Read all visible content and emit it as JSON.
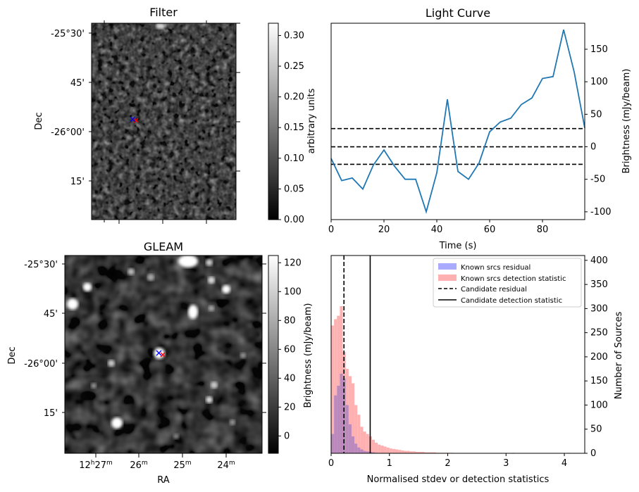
{
  "colors": {
    "series": "#1f77b4",
    "known_residual": "#aaaaff",
    "known_detection": "#ffb0b0",
    "candidate_blue": "#0000ff",
    "candidate_red": "#ff0000"
  },
  "panels": {
    "filter": {
      "title": "Filter",
      "ylabel": "Dec",
      "dec_ticks": [
        "-25°30'",
        "45'",
        "-26°00'",
        "15'"
      ],
      "colorbar": {
        "label": "arbitrary units",
        "ticks": [
          "0.00",
          "0.05",
          "0.10",
          "0.15",
          "0.20",
          "0.25",
          "0.30"
        ],
        "range": [
          0,
          0.32
        ]
      }
    },
    "gleam": {
      "title": "GLEAM",
      "xlabel": "RA",
      "ylabel": "Dec",
      "dec_ticks": [
        "-25°30'",
        "45'",
        "-26°00'",
        "15'"
      ],
      "ra_ticks": [
        {
          "h": "12",
          "m": "27",
          "main": true
        },
        {
          "m": "26"
        },
        {
          "m": "25"
        },
        {
          "m": "24"
        }
      ],
      "colorbar": {
        "label": "Brightness (mJy/beam)",
        "ticks": [
          "0",
          "20",
          "40",
          "60",
          "80",
          "100",
          "120"
        ],
        "range": [
          -12,
          125
        ]
      }
    }
  },
  "chart_data": [
    {
      "type": "line",
      "title": "Light Curve",
      "xlabel": "Time (s)",
      "ylabel": "Brightness (mJy/beam)",
      "xlim": [
        0,
        96
      ],
      "ylim": [
        -112,
        190
      ],
      "xticks": [
        0,
        20,
        40,
        60,
        80
      ],
      "yticks": [
        -100,
        -50,
        0,
        50,
        100,
        150
      ],
      "y_axis_side": "right",
      "x": [
        0,
        4,
        8,
        12,
        16,
        20,
        24,
        28,
        32,
        36,
        40,
        44,
        48,
        52,
        56,
        60,
        64,
        68,
        72,
        76,
        80,
        84,
        88,
        92,
        96
      ],
      "series": [
        {
          "values": [
            -18,
            -52,
            -48,
            -65,
            -28,
            -5,
            -30,
            -50,
            -50,
            -100,
            -40,
            73,
            -38,
            -50,
            -25,
            23,
            38,
            44,
            65,
            75,
            105,
            108,
            180,
            115,
            29
          ]
        }
      ],
      "hlines": [
        28,
        0,
        -27
      ]
    },
    {
      "type": "bar",
      "title": "",
      "xlabel": "Normalised stdev or detection statistics",
      "ylabel": "Number of Sources",
      "xlim": [
        0,
        4.35
      ],
      "ylim": [
        0,
        410
      ],
      "xticks": [
        0,
        1,
        2,
        3,
        4
      ],
      "yticks": [
        0,
        50,
        100,
        150,
        200,
        250,
        300,
        350,
        400
      ],
      "y_axis_side": "right",
      "legend_position": "top-right",
      "bin_width": 0.05,
      "bin_start": 0,
      "series": [
        {
          "name": "Known srcs residual",
          "values": [
            40,
            120,
            140,
            165,
            155,
            100,
            60,
            35,
            20,
            12,
            8,
            5,
            4,
            3,
            2,
            1
          ]
        },
        {
          "name": "Known srcs detection statistic",
          "values": [
            265,
            278,
            285,
            305,
            210,
            175,
            160,
            145,
            100,
            80,
            55,
            45,
            40,
            35,
            28,
            22,
            18,
            16,
            14,
            12,
            10,
            9,
            8,
            7,
            6,
            5,
            5,
            4,
            4,
            3,
            3,
            3,
            2,
            2,
            2,
            2,
            1,
            1,
            1,
            1,
            1,
            1,
            0,
            0,
            0,
            0,
            0,
            0,
            0,
            0,
            0,
            0,
            0,
            0,
            0,
            0,
            0,
            0,
            0,
            0,
            0,
            0,
            1,
            0,
            0,
            0,
            0,
            0,
            0,
            0,
            0,
            0,
            0,
            0,
            0,
            0,
            0,
            0,
            0,
            0,
            0,
            1
          ]
        }
      ],
      "vlines": [
        {
          "name": "Candidate residual",
          "x": 0.22,
          "style": "dashed"
        },
        {
          "name": "Candidate detection statistic",
          "x": 0.67,
          "style": "solid"
        }
      ]
    }
  ]
}
